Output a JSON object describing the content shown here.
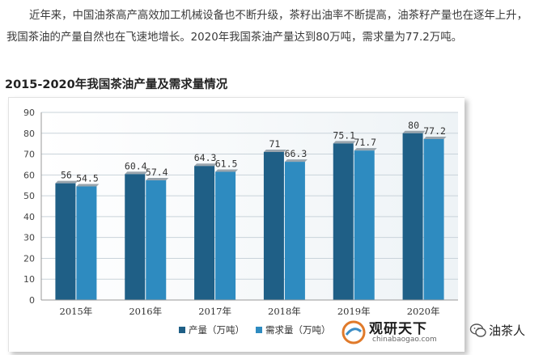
{
  "article": {
    "intro": "近年来，中国油茶高产高效加工机械设备也不断升级，茶籽出油率不断提高，油茶籽产量也在逐年上升，我国茶油的产量自然也在飞速地增长。2020年我国茶油产量达到80万吨，需求量为77.2万吨。",
    "chart_heading": "2015-2020年我国茶油产量及需求量情况"
  },
  "chart_data": {
    "type": "bar",
    "title": "",
    "xlabel": "",
    "ylabel": "",
    "categories": [
      "2015年",
      "2016年",
      "2017年",
      "2018年",
      "2019年",
      "2020年"
    ],
    "series": [
      {
        "name": "产量（万吨）",
        "values": [
          56,
          60.4,
          64.3,
          71,
          75.1,
          80
        ],
        "color": "#1f5f86"
      },
      {
        "name": "需求量（万吨）",
        "values": [
          54.5,
          57.4,
          61.5,
          66.3,
          71.7,
          77.2
        ],
        "color": "#2e8bc0"
      }
    ],
    "value_labels": [
      [
        "56",
        "60.4",
        "64.3",
        "71",
        "75.1",
        "80"
      ],
      [
        "54.5",
        "57.4",
        "61.5",
        "66.3",
        "71.7",
        "77.2"
      ]
    ],
    "ylim": [
      0,
      90
    ],
    "yticks": [
      "0",
      "10",
      "20",
      "30",
      "40",
      "50",
      "60",
      "70",
      "80",
      "90"
    ],
    "grid": true,
    "legend_position": "bottom-center"
  },
  "watermark": {
    "title": "观研天下",
    "site": "chinabaogao.com",
    "account": "油茶人",
    "icon": "wechat-icon"
  }
}
